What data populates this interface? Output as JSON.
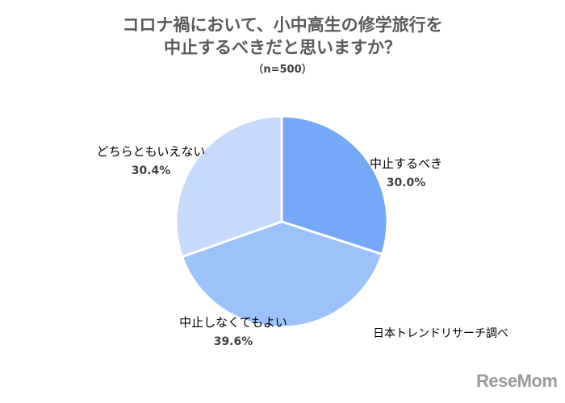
{
  "chart_data": {
    "type": "pie",
    "title_lines": [
      "コロナ禍において、小中高生の修学旅行を",
      "中止するべきだと思いますか？"
    ],
    "subtitle": "（n=500）",
    "slices": [
      {
        "name": "中止するべき",
        "value": 30.0,
        "label": "30.0%",
        "color": "#75a8f9"
      },
      {
        "name": "中止しなくてもよい",
        "value": 39.6,
        "label": "39.6%",
        "color": "#9dc2fb"
      },
      {
        "name": "どちらともいえない",
        "value": 30.4,
        "label": "30.4%",
        "color": "#c5dafd"
      }
    ],
    "start_angle_deg": 0,
    "direction": "clockwise",
    "legend": "none"
  },
  "source_note": "日本トレンドリサーチ調べ",
  "brand": "ReseMom"
}
